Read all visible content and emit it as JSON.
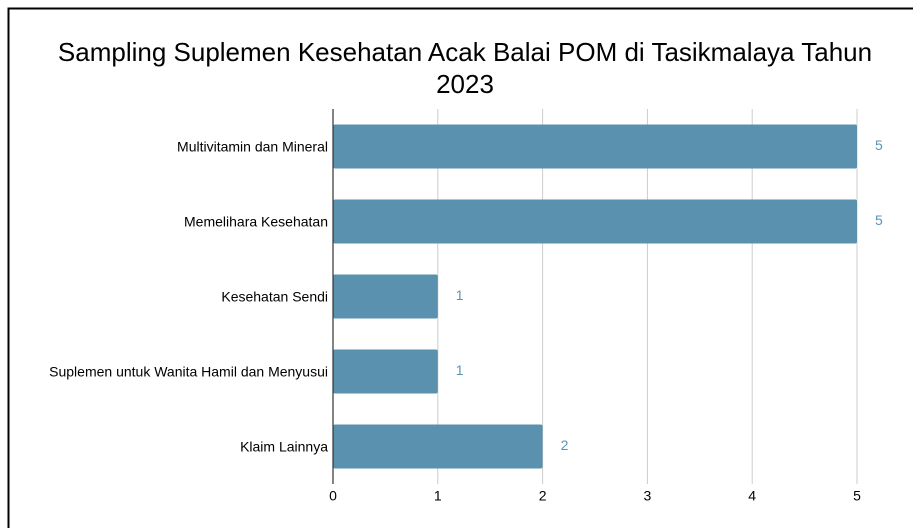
{
  "chart_data": {
    "type": "barh",
    "title": "Sampling Suplemen Kesehatan Acak Balai POM di Tasikmalaya Tahun 2023",
    "categories": [
      "Multivitamin dan Mineral",
      "Memelihara Kesehatan",
      "Kesehatan Sendi",
      "Suplemen untuk Wanita Hamil dan Menyusui",
      "Klaim Lainnya"
    ],
    "values": [
      5,
      5,
      1,
      1,
      2
    ],
    "color": "#5a91ae",
    "label_color": "#5b93b8",
    "xlim": [
      0,
      5
    ],
    "xticks": [
      0,
      1,
      2,
      3,
      4,
      5
    ],
    "grid": true
  }
}
